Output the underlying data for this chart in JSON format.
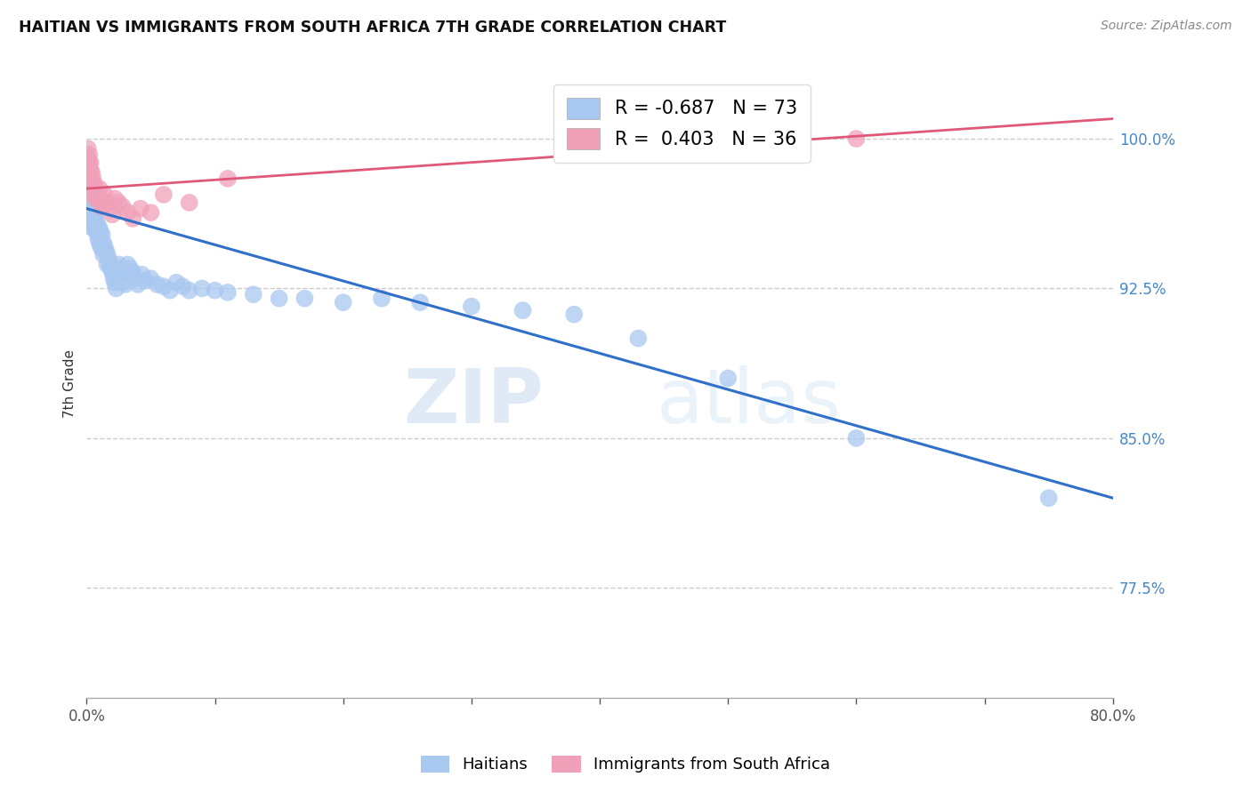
{
  "title": "HAITIAN VS IMMIGRANTS FROM SOUTH AFRICA 7TH GRADE CORRELATION CHART",
  "source": "Source: ZipAtlas.com",
  "ylabel": "7th Grade",
  "ytick_labels": [
    "100.0%",
    "92.5%",
    "85.0%",
    "77.5%"
  ],
  "ytick_values": [
    1.0,
    0.925,
    0.85,
    0.775
  ],
  "xmin": 0.0,
  "xmax": 0.8,
  "ymin": 0.72,
  "ymax": 1.035,
  "blue_R": -0.687,
  "blue_N": 73,
  "pink_R": 0.403,
  "pink_N": 36,
  "blue_color": "#a8c8f0",
  "pink_color": "#f0a0b8",
  "blue_line_color": "#3070c8",
  "pink_line_color": "#e05878",
  "blue_trendline_x": [
    0.0,
    0.8
  ],
  "blue_trendline_y": [
    0.965,
    0.82
  ],
  "pink_trendline_x": [
    0.0,
    0.8
  ],
  "pink_trendline_y": [
    0.975,
    1.01
  ],
  "blue_scatter_x": [
    0.001,
    0.002,
    0.002,
    0.003,
    0.003,
    0.003,
    0.004,
    0.004,
    0.005,
    0.005,
    0.005,
    0.006,
    0.006,
    0.007,
    0.007,
    0.008,
    0.008,
    0.009,
    0.009,
    0.01,
    0.01,
    0.011,
    0.011,
    0.012,
    0.012,
    0.013,
    0.013,
    0.014,
    0.015,
    0.016,
    0.016,
    0.017,
    0.018,
    0.019,
    0.02,
    0.021,
    0.022,
    0.023,
    0.025,
    0.026,
    0.027,
    0.028,
    0.03,
    0.032,
    0.034,
    0.036,
    0.038,
    0.04,
    0.043,
    0.046,
    0.05,
    0.055,
    0.06,
    0.065,
    0.07,
    0.075,
    0.08,
    0.09,
    0.1,
    0.11,
    0.13,
    0.15,
    0.17,
    0.2,
    0.23,
    0.26,
    0.3,
    0.34,
    0.38,
    0.43,
    0.5,
    0.6,
    0.75
  ],
  "blue_scatter_y": [
    0.96,
    0.968,
    0.96,
    0.966,
    0.962,
    0.958,
    0.964,
    0.956,
    0.963,
    0.959,
    0.955,
    0.962,
    0.957,
    0.96,
    0.955,
    0.958,
    0.953,
    0.956,
    0.95,
    0.955,
    0.948,
    0.953,
    0.946,
    0.952,
    0.945,
    0.948,
    0.942,
    0.946,
    0.944,
    0.942,
    0.937,
    0.94,
    0.937,
    0.935,
    0.933,
    0.93,
    0.928,
    0.925,
    0.937,
    0.935,
    0.932,
    0.928,
    0.927,
    0.937,
    0.935,
    0.933,
    0.93,
    0.927,
    0.932,
    0.929,
    0.93,
    0.927,
    0.926,
    0.924,
    0.928,
    0.926,
    0.924,
    0.925,
    0.924,
    0.923,
    0.922,
    0.92,
    0.92,
    0.918,
    0.92,
    0.918,
    0.916,
    0.914,
    0.912,
    0.9,
    0.88,
    0.85,
    0.82
  ],
  "pink_scatter_x": [
    0.001,
    0.001,
    0.002,
    0.002,
    0.002,
    0.003,
    0.003,
    0.003,
    0.004,
    0.004,
    0.005,
    0.005,
    0.006,
    0.006,
    0.007,
    0.007,
    0.008,
    0.009,
    0.01,
    0.011,
    0.012,
    0.014,
    0.016,
    0.018,
    0.02,
    0.022,
    0.025,
    0.028,
    0.032,
    0.036,
    0.042,
    0.05,
    0.06,
    0.08,
    0.11,
    0.6
  ],
  "pink_scatter_y": [
    0.995,
    0.99,
    0.992,
    0.988,
    0.985,
    0.988,
    0.984,
    0.98,
    0.983,
    0.978,
    0.98,
    0.975,
    0.977,
    0.972,
    0.975,
    0.97,
    0.972,
    0.97,
    0.975,
    0.968,
    0.966,
    0.972,
    0.968,
    0.965,
    0.962,
    0.97,
    0.968,
    0.966,
    0.963,
    0.96,
    0.965,
    0.963,
    0.972,
    0.968,
    0.98,
    1.0
  ],
  "watermark_zip": "ZIP",
  "watermark_atlas": "atlas",
  "background_color": "#ffffff",
  "grid_color": "#cccccc"
}
